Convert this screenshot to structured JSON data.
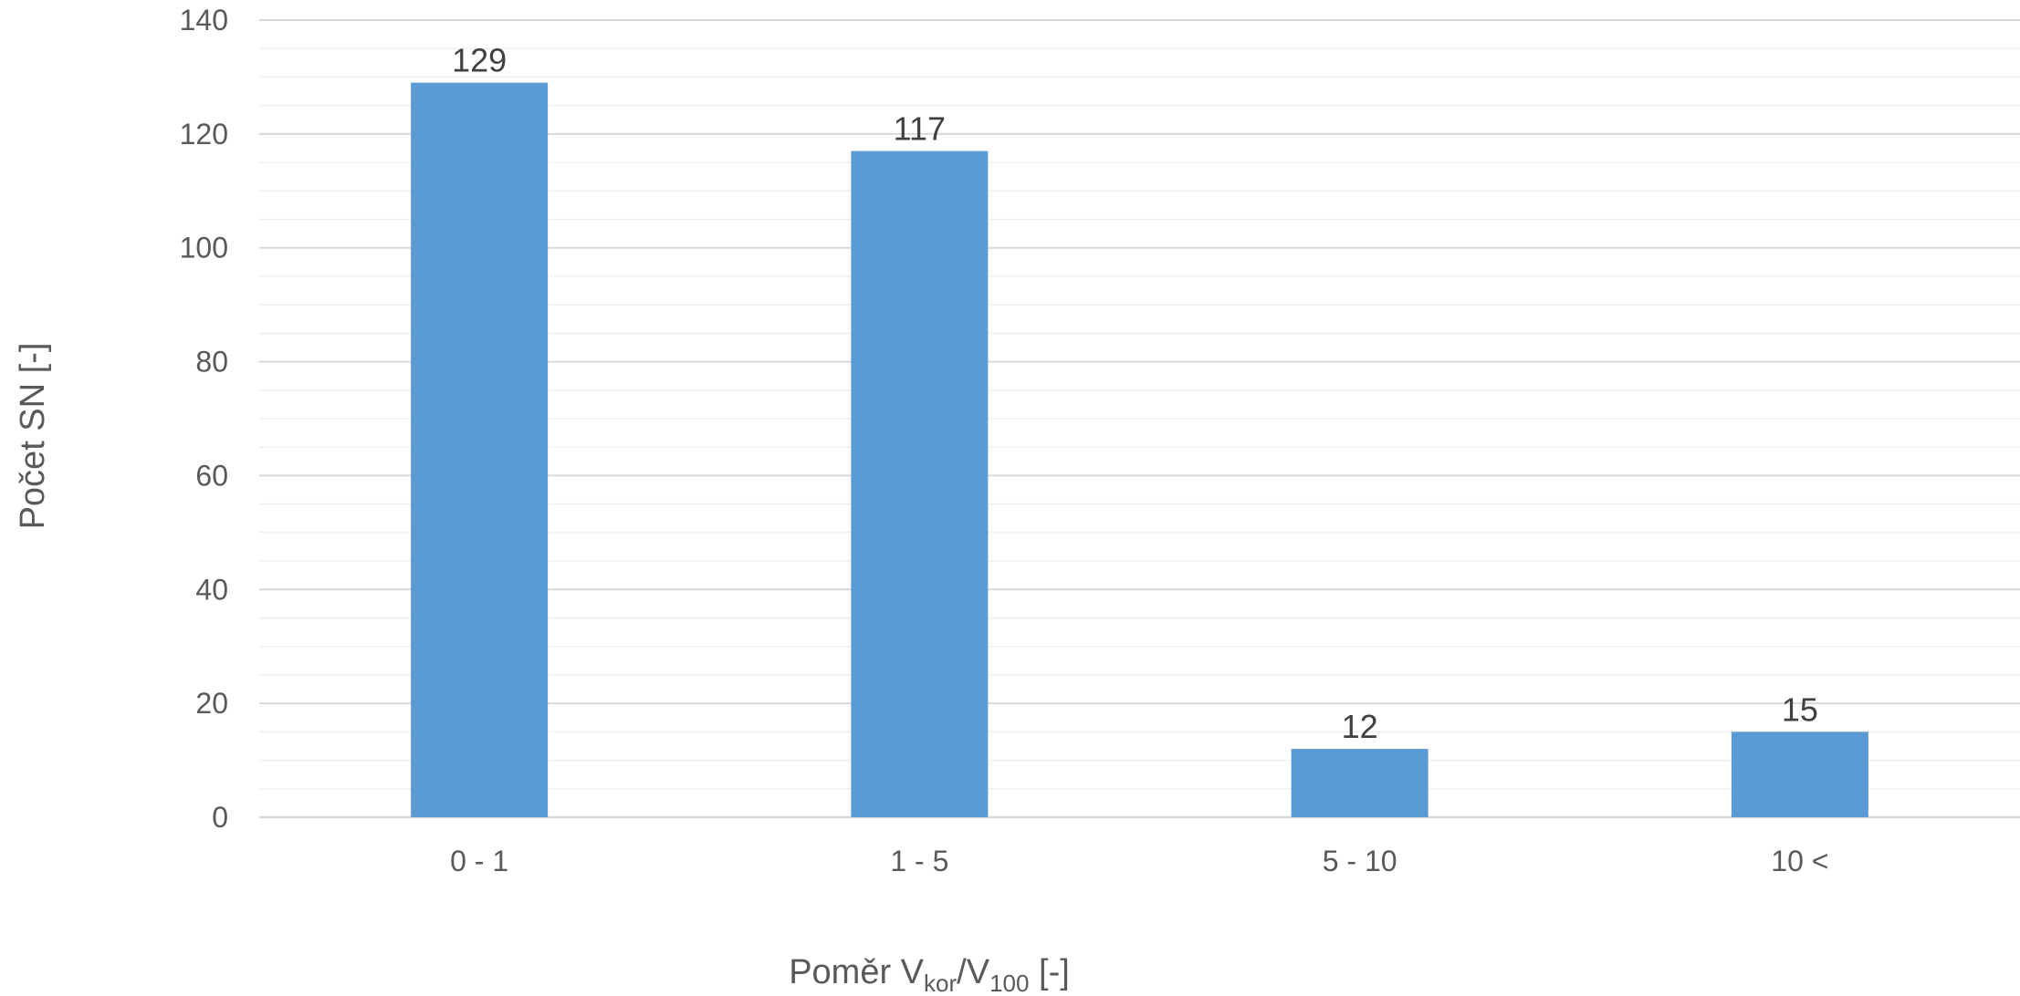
{
  "chart_data": {
    "type": "bar",
    "categories": [
      "0 - 1",
      "1 - 5",
      "5 - 10",
      "10 <"
    ],
    "values": [
      129,
      117,
      12,
      15
    ],
    "data_labels": [
      "129",
      "117",
      "12",
      "15"
    ],
    "title": "",
    "xlabel": {
      "prefix": "Poměr V",
      "sub1": "kor",
      "middle": "/V",
      "sub2": "100",
      "suffix": " [-]"
    },
    "ylabel": "Počet SN [-]",
    "ylim": [
      0,
      140
    ],
    "y_ticks": [
      0,
      20,
      40,
      60,
      80,
      100,
      120,
      140
    ],
    "y_tick_labels": [
      "0",
      "20",
      "40",
      "60",
      "80",
      "100",
      "120",
      "140"
    ],
    "minor_grid_step": 5,
    "grid": true,
    "legend": "none",
    "bar_color": "#5B9BD5",
    "major_grid_color": "#D9D9D9",
    "minor_grid_color": "#F0F0F0"
  }
}
